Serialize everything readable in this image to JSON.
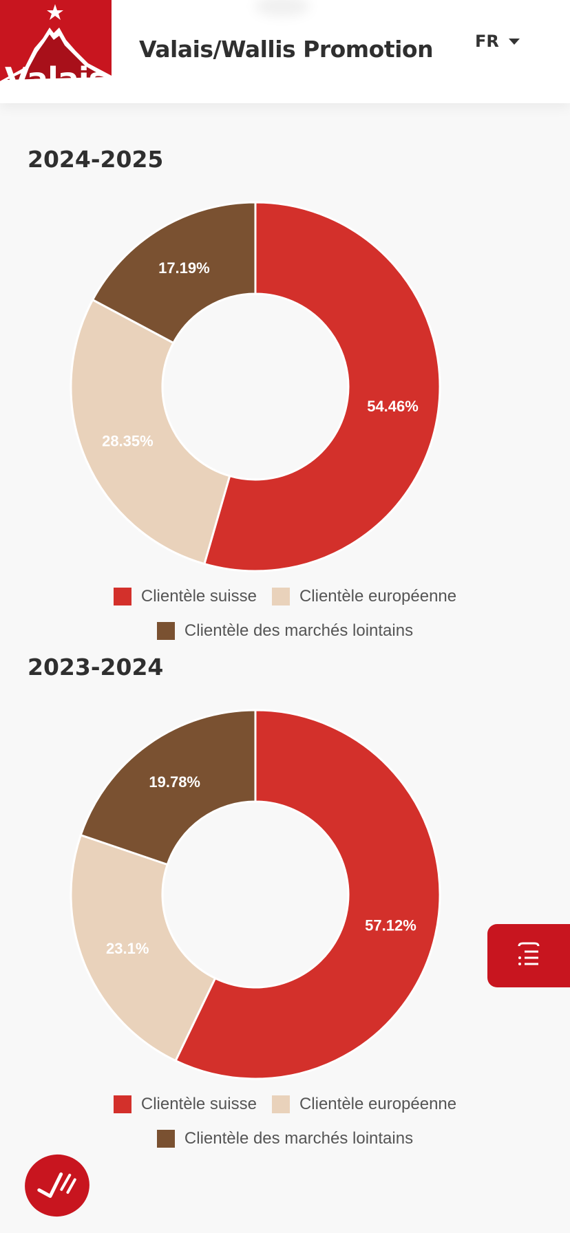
{
  "header": {
    "logo_text": "Valais",
    "site_title": "Valais/Wallis Promotion",
    "language": "FR"
  },
  "colors": {
    "brand_red": "#c8151f",
    "swiss": "#d3302b",
    "european": "#e9d2bb",
    "distant": "#7a5131"
  },
  "chart_data": [
    {
      "type": "pie",
      "title": "2024-2025",
      "donut": true,
      "categories": [
        "Clientèle suisse",
        "Clientèle européenne",
        "Clientèle des marchés lointains"
      ],
      "values": [
        54.46,
        28.35,
        17.19
      ],
      "labels": [
        "54.46%",
        "28.35%",
        "17.19%"
      ],
      "colors": [
        "#d3302b",
        "#e9d2bb",
        "#7a5131"
      ],
      "legend": "bottom"
    },
    {
      "type": "pie",
      "title": "2023-2024",
      "donut": true,
      "categories": [
        "Clientèle suisse",
        "Clientèle européenne",
        "Clientèle des marchés lointains"
      ],
      "values": [
        57.12,
        23.1,
        19.78
      ],
      "labels": [
        "57.12%",
        "23.1%",
        "19.78%"
      ],
      "colors": [
        "#d3302b",
        "#e9d2bb",
        "#7a5131"
      ],
      "legend": "bottom"
    }
  ],
  "icons": {
    "side_tab": "list-icon",
    "fab": "checkmark-icon",
    "language": "chevron-down-icon"
  }
}
